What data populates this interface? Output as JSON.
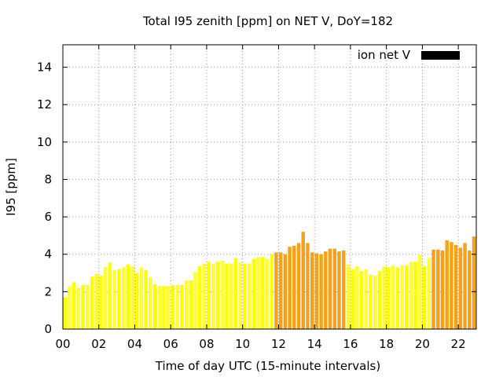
{
  "chart_data": {
    "type": "bar",
    "title": "Total I95 zenith [ppm] on NET V, DoY=182",
    "xlabel": "Time of day UTC (15-minute intervals)",
    "ylabel": "I95 [ppm]",
    "xlim": [
      0,
      23
    ],
    "ylim": [
      0,
      15.2
    ],
    "x_ticks": [
      "00",
      "02",
      "04",
      "06",
      "08",
      "10",
      "12",
      "14",
      "16",
      "18",
      "20",
      "22"
    ],
    "y_ticks": [
      "0",
      "2",
      "4",
      "6",
      "8",
      "10",
      "12",
      "14"
    ],
    "grid": true,
    "legend": {
      "position": "top-right",
      "entries": [
        {
          "name": "ion net V",
          "color": "#000000"
        }
      ]
    },
    "colors": {
      "yellow": "#ffff00",
      "yellow_light": "#ffff33",
      "orange": "#f5a21a"
    },
    "interval_hours": 0.25,
    "series": [
      {
        "name": "ion net V",
        "values": [
          1.7,
          2.3,
          2.5,
          2.2,
          2.35,
          2.35,
          2.8,
          2.95,
          2.85,
          3.3,
          3.55,
          3.15,
          3.2,
          3.3,
          3.45,
          3.35,
          3.0,
          3.3,
          3.15,
          2.75,
          2.4,
          2.3,
          2.3,
          2.3,
          2.35,
          2.35,
          2.35,
          2.6,
          2.6,
          3.05,
          3.35,
          3.5,
          3.6,
          3.5,
          3.6,
          3.65,
          3.5,
          3.5,
          3.8,
          3.55,
          3.5,
          3.5,
          3.75,
          3.85,
          3.85,
          3.75,
          4.0,
          4.1,
          4.1,
          4.0,
          4.4,
          4.45,
          4.6,
          5.2,
          4.6,
          4.1,
          4.05,
          4.0,
          4.15,
          4.3,
          4.3,
          4.15,
          4.2,
          3.45,
          3.2,
          3.35,
          3.1,
          3.2,
          2.9,
          2.85,
          3.1,
          3.35,
          3.3,
          3.4,
          3.3,
          3.4,
          3.4,
          3.6,
          3.6,
          3.95,
          3.35,
          3.8,
          4.25,
          4.25,
          4.2,
          4.75,
          4.65,
          4.5,
          4.35,
          4.6,
          4.2,
          4.95
        ],
        "band": [
          "yellow",
          "yellow",
          "yellow",
          "yellow",
          "yellow",
          "yellow",
          "yellow",
          "yellow",
          "yellow",
          "yellow",
          "yellow",
          "yellow",
          "yellow",
          "yellow",
          "yellow",
          "yellow",
          "yellow",
          "yellow",
          "yellow",
          "yellow",
          "yellow",
          "yellow",
          "yellow",
          "yellow",
          "yellow",
          "yellow",
          "yellow",
          "yellow",
          "yellow",
          "yellow",
          "yellow",
          "yellow",
          "yellow",
          "yellow",
          "yellow",
          "yellow",
          "yellow",
          "yellow",
          "yellow",
          "yellow",
          "yellow",
          "yellow",
          "yellow",
          "yellow",
          "yellow",
          "yellow",
          "yellow",
          "orange",
          "orange",
          "orange",
          "orange",
          "orange",
          "orange",
          "orange",
          "orange",
          "orange",
          "orange",
          "orange",
          "orange",
          "orange",
          "orange",
          "orange",
          "orange",
          "yellow",
          "yellow",
          "yellow",
          "yellow",
          "yellow",
          "yellow",
          "yellow",
          "yellow",
          "yellow",
          "yellow",
          "yellow",
          "yellow",
          "yellow",
          "yellow",
          "yellow",
          "yellow",
          "yellow",
          "yellow",
          "yellow",
          "orange",
          "orange",
          "orange",
          "orange",
          "orange",
          "orange",
          "orange",
          "orange",
          "orange",
          "orange"
        ]
      }
    ]
  }
}
